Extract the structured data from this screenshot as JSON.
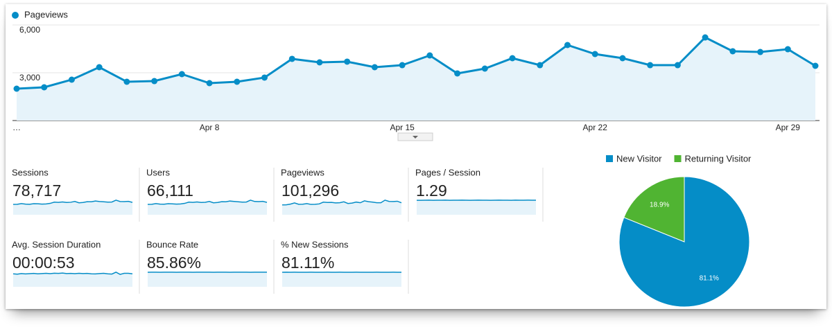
{
  "chart_data": [
    {
      "type": "line",
      "categories": [
        "…",
        null,
        null,
        null,
        null,
        null,
        null,
        "Apr 8",
        null,
        null,
        null,
        null,
        null,
        null,
        "Apr 15",
        null,
        null,
        null,
        null,
        null,
        null,
        "Apr 22",
        null,
        null,
        null,
        null,
        null,
        null,
        "Apr 29",
        null
      ],
      "series": [
        {
          "name": "Pageviews",
          "color": "#058dc7",
          "values": [
            2000,
            2087,
            2565,
            3348,
            2435,
            2478,
            2913,
            2348,
            2435,
            2696,
            3870,
            3652,
            3696,
            3348,
            3478,
            4087,
            2957,
            3261,
            3913,
            3478,
            4739,
            4174,
            3913,
            3478,
            3478,
            5217,
            4348,
            4304,
            4478,
            3435
          ]
        }
      ],
      "ylim": [
        0,
        6000
      ],
      "yticks": [
        {
          "value": 3000,
          "label": "3,000"
        },
        {
          "value": 6000,
          "label": "6,000"
        }
      ],
      "grid": true
    },
    {
      "type": "pie",
      "categories": [
        "New Visitor",
        "Returning Visitor"
      ],
      "values": [
        81.1,
        18.9
      ],
      "value_labels": [
        "81.1%",
        "18.9%"
      ],
      "colors": [
        "#058dc7",
        "#50b432"
      ],
      "legend": "top"
    }
  ],
  "metrics": [
    {
      "label": "Sessions",
      "value": "78,717",
      "sparkline": [
        1580,
        1620,
        1950,
        1700,
        1650,
        1900,
        1850,
        1700,
        1800,
        2050,
        2600,
        2500,
        2700,
        2450,
        2550,
        2900,
        2300,
        2450,
        2800,
        2750,
        3100,
        2900,
        2750,
        2600,
        2650,
        3500,
        2900,
        2850,
        2950,
        2500
      ]
    },
    {
      "label": "Users",
      "value": "66,111",
      "sparkline": [
        1330,
        1360,
        1640,
        1430,
        1390,
        1600,
        1550,
        1430,
        1510,
        1720,
        2180,
        2100,
        2270,
        2060,
        2140,
        2440,
        1930,
        2060,
        2350,
        2310,
        2600,
        2440,
        2310,
        2180,
        2230,
        2940,
        2440,
        2390,
        2480,
        2100
      ]
    },
    {
      "label": "Pageviews",
      "value": "101,296",
      "sparkline": [
        2000,
        2087,
        2565,
        3348,
        2435,
        2478,
        2913,
        2348,
        2435,
        2696,
        3870,
        3652,
        3696,
        3348,
        3478,
        4087,
        2957,
        3261,
        3913,
        3478,
        4739,
        4174,
        3913,
        3478,
        3478,
        5217,
        4348,
        4304,
        4478,
        3435
      ]
    },
    {
      "label": "Pages / Session",
      "value": "1.29",
      "sparkline": [
        1.27,
        1.28,
        1.29,
        1.3,
        1.28,
        1.29,
        1.29,
        1.3,
        1.28,
        1.29,
        1.29,
        1.3,
        1.29,
        1.28,
        1.29,
        1.3,
        1.29,
        1.29,
        1.28,
        1.29,
        1.3,
        1.29,
        1.29,
        1.28,
        1.3,
        1.29,
        1.29,
        1.3,
        1.29,
        1.29
      ]
    },
    {
      "label": "Avg. Session Duration",
      "value": "00:00:53",
      "sparkline": [
        50,
        47,
        52,
        49,
        51,
        53,
        50,
        52,
        54,
        51,
        55,
        53,
        56,
        52,
        53,
        51,
        54,
        52,
        53,
        50,
        49,
        52,
        54,
        50,
        48,
        63,
        45,
        54,
        54,
        50
      ]
    },
    {
      "label": "Bounce Rate",
      "value": "85.86%",
      "sparkline": [
        85.5,
        85.9,
        86.1,
        85.7,
        85.8,
        86.0,
        85.9,
        85.6,
        85.8,
        86.0,
        85.9,
        85.7,
        85.8,
        86.1,
        85.9,
        85.8,
        85.7,
        86.0,
        85.9,
        85.8,
        85.6,
        85.9,
        86.0,
        85.8,
        85.9,
        85.7,
        85.9,
        86.0,
        85.8,
        85.9
      ]
    },
    {
      "label": "% New Sessions",
      "value": "81.11%",
      "sparkline": [
        80.5,
        81.3,
        81.0,
        81.4,
        80.9,
        81.2,
        81.1,
        81.5,
        81.0,
        81.2,
        80.8,
        81.3,
        81.1,
        81.0,
        81.4,
        81.2,
        80.9,
        81.1,
        81.3,
        81.0,
        81.2,
        81.1,
        80.9,
        81.3,
        81.1,
        81.2,
        81.0,
        81.3,
        81.1,
        80.8
      ]
    }
  ]
}
